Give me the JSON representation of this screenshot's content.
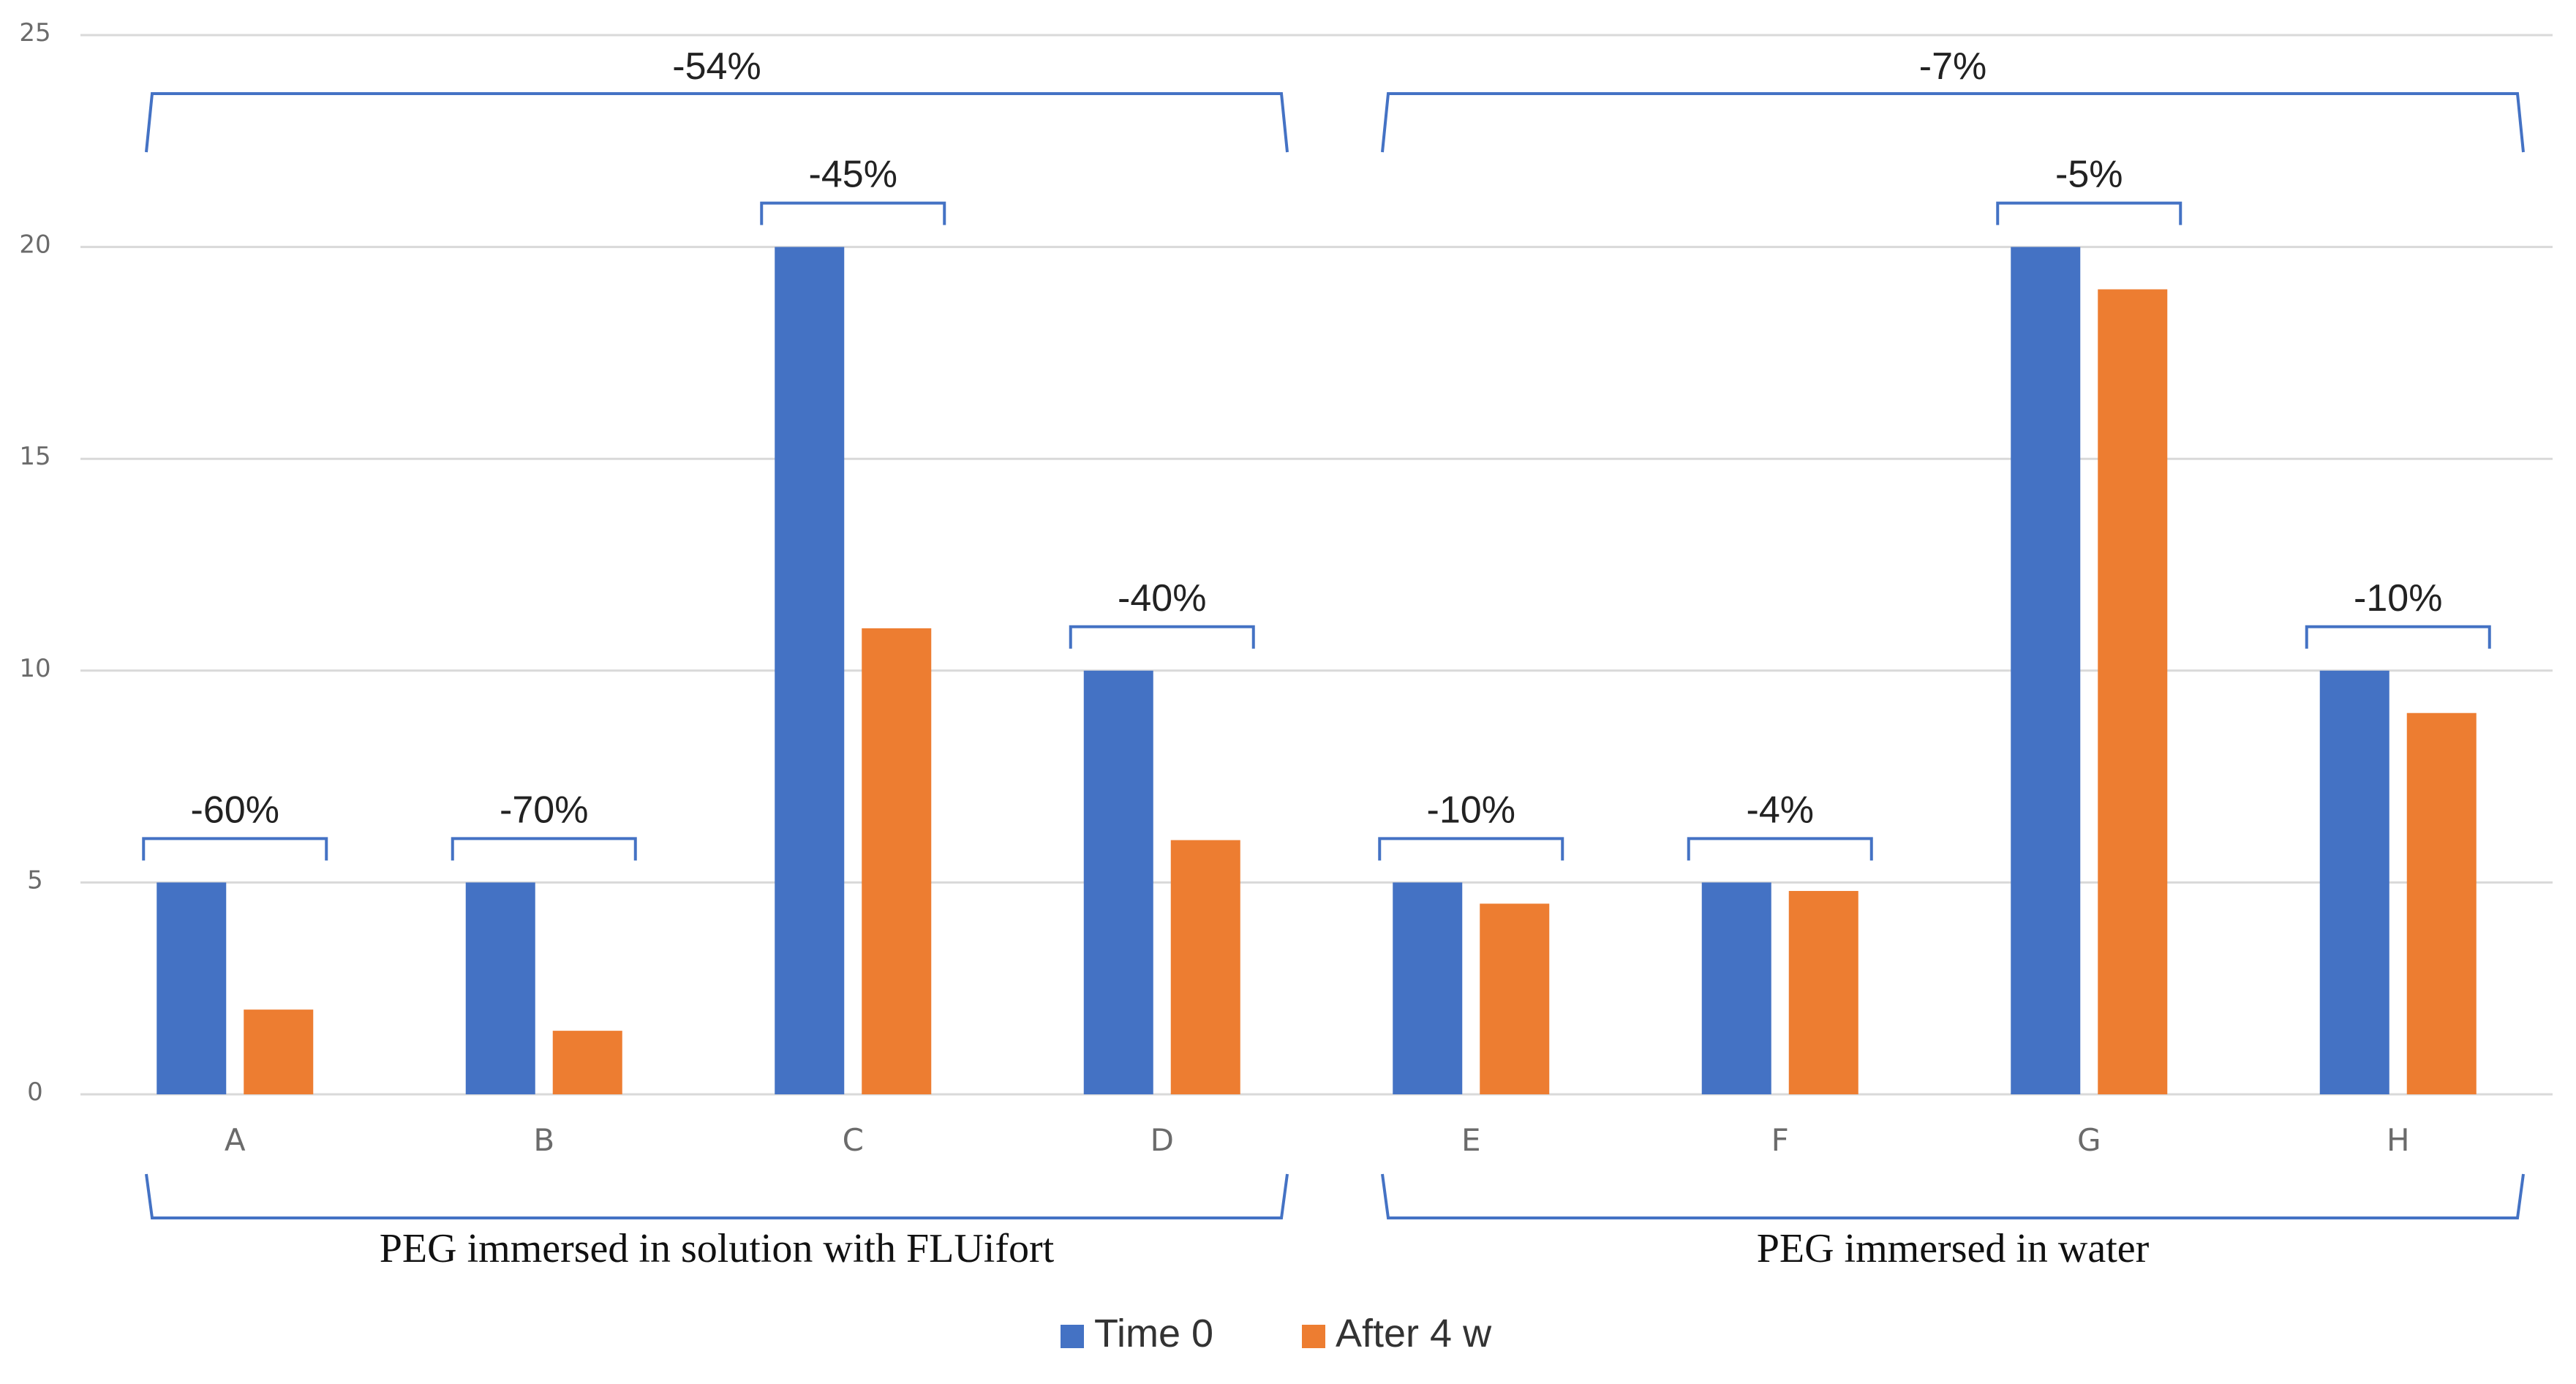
{
  "chart_data": {
    "type": "bar",
    "categories": [
      "A",
      "B",
      "C",
      "D",
      "E",
      "F",
      "G",
      "H"
    ],
    "series": [
      {
        "name": "Time 0",
        "color": "#4472c4",
        "values": [
          5,
          5,
          20,
          10,
          5,
          5,
          20,
          10
        ]
      },
      {
        "name": "After 4 w",
        "color": "#ed7d31",
        "values": [
          2,
          1.5,
          11,
          6,
          4.5,
          4.8,
          19,
          9
        ]
      }
    ],
    "ylim": [
      0,
      25
    ],
    "yticks": [
      "0",
      "5",
      "10",
      "15",
      "20",
      "25"
    ],
    "ytick_values": [
      0,
      5,
      10,
      15,
      20,
      25
    ],
    "grid": true,
    "legend_position": "bottom-center",
    "bar_annotations": [
      "-60%",
      "-70%",
      "-45%",
      "-40%",
      "-10%",
      "-4%",
      "-5%",
      "-10%"
    ],
    "groups": [
      {
        "label": "PEG immersed in solution with FLUifort",
        "change": "-54%",
        "categories": [
          "A",
          "B",
          "C",
          "D"
        ]
      },
      {
        "label": "PEG immersed in water",
        "change": "-7%",
        "categories": [
          "E",
          "F",
          "G",
          "H"
        ]
      }
    ],
    "bracket_color": "#4472c4"
  }
}
